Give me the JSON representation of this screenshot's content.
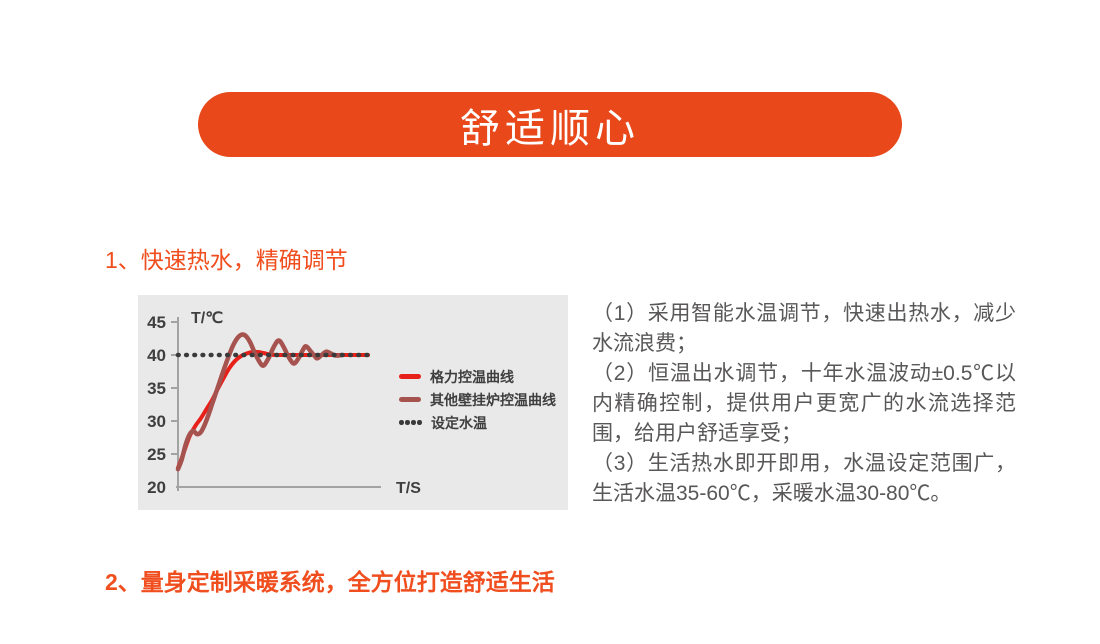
{
  "banner": {
    "title": "舒适顺心"
  },
  "colors": {
    "banner_bg": "#E8481A",
    "heading": "#F04E1E",
    "body_text": "#595757",
    "chart_bg": "#E9E9E9",
    "axis": "#A3A3A3",
    "chart_text": "#3F3F3F"
  },
  "section1": {
    "heading": "1、快速热水，精确调节"
  },
  "section2": {
    "heading": "2、量身定制采暖系统，全方位打造舒适生活"
  },
  "description": {
    "items": [
      "（1）采用智能水温调节，快速出热水，减少水流浪费；",
      "（2）恒温出水调节，十年水温波动±0.5℃以内精确控制，提供用户更宽广的水流选择范围，给用户舒适享受；",
      "（3）生活热水即开即用，水温设定范围广，生活水温35-60℃，采暖水温30-80℃。"
    ]
  },
  "chart_data": {
    "type": "line",
    "title": "",
    "xlabel": "T/S",
    "ylabel": "T/℃",
    "xlim": [
      0,
      100
    ],
    "ylim": [
      20,
      45
    ],
    "yticks": [
      45,
      40,
      35,
      30,
      25,
      20
    ],
    "grid": false,
    "legend_position": "right-middle",
    "setpoint": {
      "label": "设定水温",
      "value": 40,
      "style": "dotted",
      "color": "#3A3A3A"
    },
    "series": [
      {
        "name": "格力控温曲线",
        "color": "#E8201A",
        "width": 4,
        "points": [
          [
            0,
            22.9
          ],
          [
            3,
            25.2
          ],
          [
            6,
            27.6
          ],
          [
            9,
            29.2
          ],
          [
            12,
            30.4
          ],
          [
            15,
            31.8
          ],
          [
            18,
            33.2
          ],
          [
            21,
            34.9
          ],
          [
            24,
            36.5
          ],
          [
            27,
            38.0
          ],
          [
            30,
            39.1
          ],
          [
            33,
            39.8
          ],
          [
            36,
            40.2
          ],
          [
            39,
            40.45
          ],
          [
            42,
            40.45
          ],
          [
            45,
            40.3
          ],
          [
            48,
            40.1
          ],
          [
            52,
            40.0
          ],
          [
            60,
            40.0
          ],
          [
            70,
            40.0
          ],
          [
            80,
            40.0
          ],
          [
            90,
            40.0
          ],
          [
            100,
            40.0
          ]
        ]
      },
      {
        "name": "其他壁挂炉控温曲线",
        "color": "#A6534F",
        "width": 4.5,
        "points": [
          [
            0,
            22.7
          ],
          [
            2,
            24.2
          ],
          [
            4,
            26.4
          ],
          [
            6,
            27.9
          ],
          [
            8,
            28.5
          ],
          [
            10,
            28.0
          ],
          [
            12,
            28.3
          ],
          [
            14,
            29.4
          ],
          [
            16,
            30.9
          ],
          [
            18,
            32.6
          ],
          [
            20,
            34.3
          ],
          [
            22,
            36.0
          ],
          [
            24,
            37.7
          ],
          [
            26,
            39.3
          ],
          [
            28,
            40.8
          ],
          [
            30,
            42.0
          ],
          [
            32,
            42.8
          ],
          [
            34,
            43.1
          ],
          [
            36,
            42.8
          ],
          [
            38,
            41.9
          ],
          [
            40,
            40.6
          ],
          [
            42,
            39.4
          ],
          [
            44,
            38.5
          ],
          [
            45,
            38.4
          ],
          [
            46,
            38.7
          ],
          [
            48,
            39.7
          ],
          [
            50,
            41.0
          ],
          [
            52,
            42.0
          ],
          [
            53,
            42.2
          ],
          [
            54,
            42.0
          ],
          [
            56,
            41.0
          ],
          [
            58,
            39.8
          ],
          [
            60,
            38.9
          ],
          [
            61,
            38.7
          ],
          [
            62,
            38.9
          ],
          [
            64,
            39.8
          ],
          [
            66,
            40.9
          ],
          [
            67,
            41.3
          ],
          [
            68,
            41.2
          ],
          [
            70,
            40.5
          ],
          [
            72,
            39.8
          ],
          [
            73,
            39.5
          ],
          [
            74,
            39.6
          ],
          [
            76,
            40.1
          ],
          [
            78,
            40.5
          ],
          [
            80,
            40.3
          ],
          [
            82,
            40.0
          ],
          [
            84,
            39.9
          ],
          [
            86,
            40.0
          ]
        ]
      }
    ]
  }
}
